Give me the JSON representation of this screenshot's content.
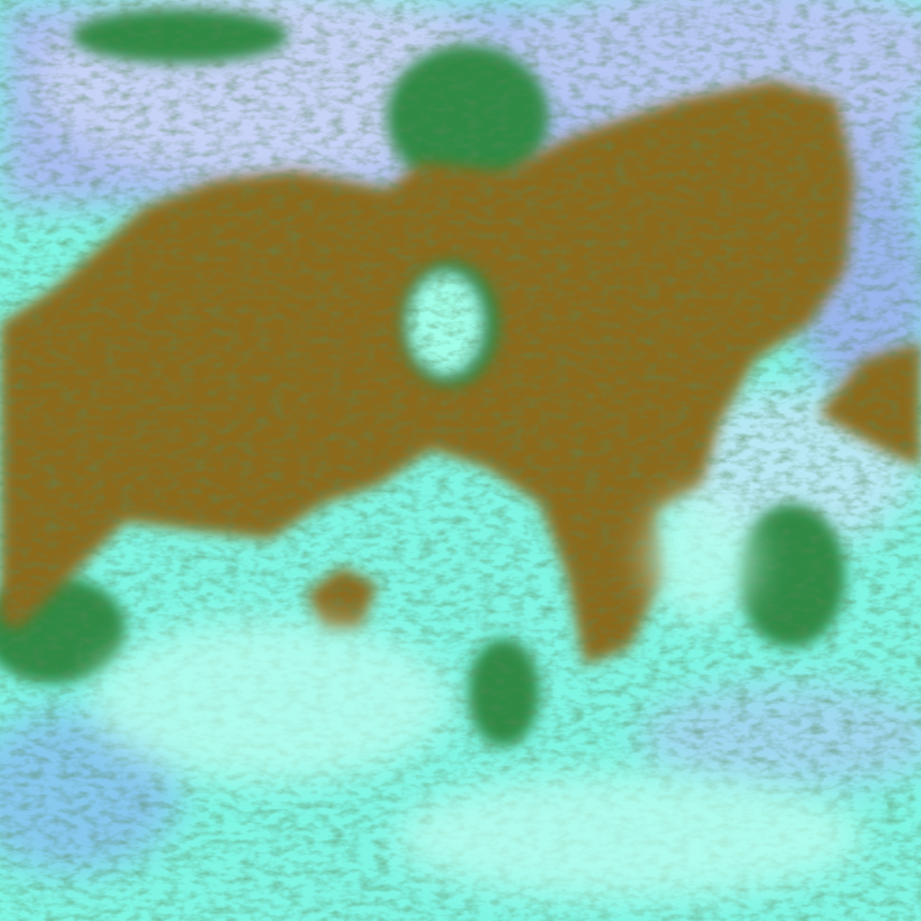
{
  "image": {
    "kind": "false-color satellite imagery",
    "colors": {
      "land": "#8a6a1c",
      "land_dark": "#6f5a1a",
      "vegetation_edge": "#2f7a3a",
      "cloud_bright": "#7ffbe6",
      "cloud_white": "#c8fff4",
      "high_cloud": "#9fb8f0",
      "high_cloud_light": "#c9d6f8",
      "shadow": "#1a3a30"
    }
  }
}
